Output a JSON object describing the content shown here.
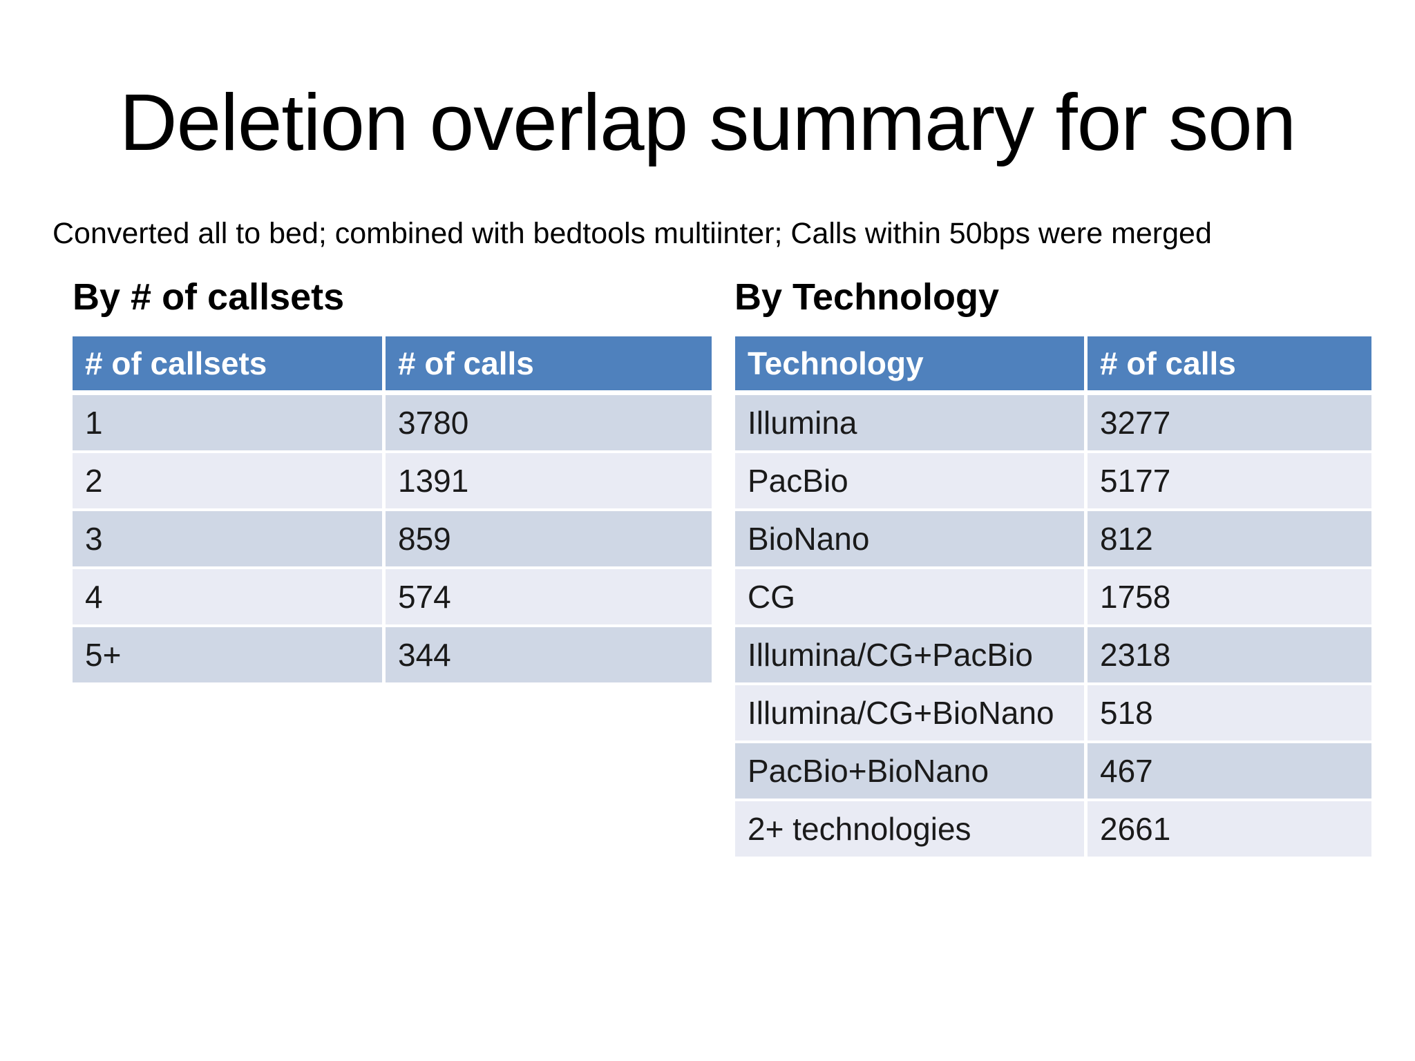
{
  "slide": {
    "title": "Deletion overlap summary for son",
    "subtitle": "Converted all to bed; combined with bedtools multiinter; Calls within 50bps were merged"
  },
  "colors": {
    "header_bg": "#4f81bd",
    "header_text": "#ffffff",
    "row_band_dark": "#cfd7e5",
    "row_band_light": "#e9ebf4",
    "body_text": "#1a1a1a",
    "background": "#ffffff"
  },
  "tables": {
    "callsets": {
      "heading": "By # of callsets",
      "columns": [
        "# of callsets",
        "# of calls"
      ],
      "rows": [
        [
          "1",
          "3780"
        ],
        [
          "2",
          "1391"
        ],
        [
          "3",
          "859"
        ],
        [
          "4",
          "574"
        ],
        [
          "5+",
          "344"
        ]
      ]
    },
    "technology": {
      "heading": "By Technology",
      "columns": [
        "Technology",
        "# of calls"
      ],
      "rows": [
        [
          "Illumina",
          "3277"
        ],
        [
          "PacBio",
          "5177"
        ],
        [
          "BioNano",
          "812"
        ],
        [
          "CG",
          "1758"
        ],
        [
          "Illumina/CG+PacBio",
          "2318"
        ],
        [
          "Illumina/CG+BioNano",
          "518"
        ],
        [
          "PacBio+BioNano",
          "467"
        ],
        [
          "2+ technologies",
          "2661"
        ]
      ]
    }
  }
}
